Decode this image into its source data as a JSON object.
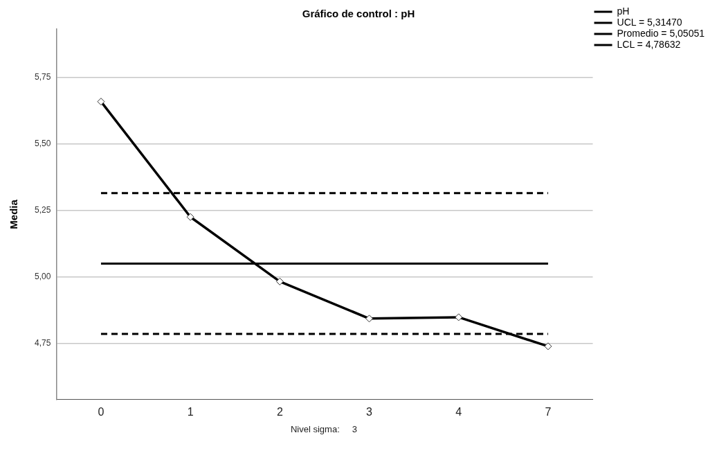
{
  "chart_data": {
    "type": "line",
    "title": "Gráfico de control : pH",
    "ylabel": "Media",
    "categories": [
      "0",
      "1",
      "2",
      "3",
      "4",
      "7"
    ],
    "series": [
      {
        "name": "pH",
        "color": "#000000",
        "values": [
          5.658,
          5.225,
          4.983,
          4.844,
          4.849,
          4.74
        ]
      }
    ],
    "ref_lines": [
      {
        "axis": "y",
        "value": 5.3147,
        "label": "UCL = 5,31470",
        "color": "#000000",
        "line_style": "dashed"
      },
      {
        "axis": "y",
        "value": 5.05051,
        "label": "Promedio = 5,05051",
        "color": "#000000",
        "line_style": "solid"
      },
      {
        "axis": "y",
        "value": 4.78632,
        "label": "LCL = 4,78632",
        "color": "#000000",
        "line_style": "dashed"
      }
    ],
    "ylim": [
      4.54,
      5.93
    ],
    "yticks": [
      {
        "value": 4.75,
        "label": "4,75"
      },
      {
        "value": 5.0,
        "label": "5,00"
      },
      {
        "value": 5.25,
        "label": "5,25"
      },
      {
        "value": 5.5,
        "label": "5,50"
      },
      {
        "value": 5.75,
        "label": "5,75"
      }
    ],
    "grid": "y",
    "legend": "top right",
    "marker": "diamond",
    "line_style": "solid",
    "annotations": [
      "Nivel sigma:     3"
    ]
  }
}
